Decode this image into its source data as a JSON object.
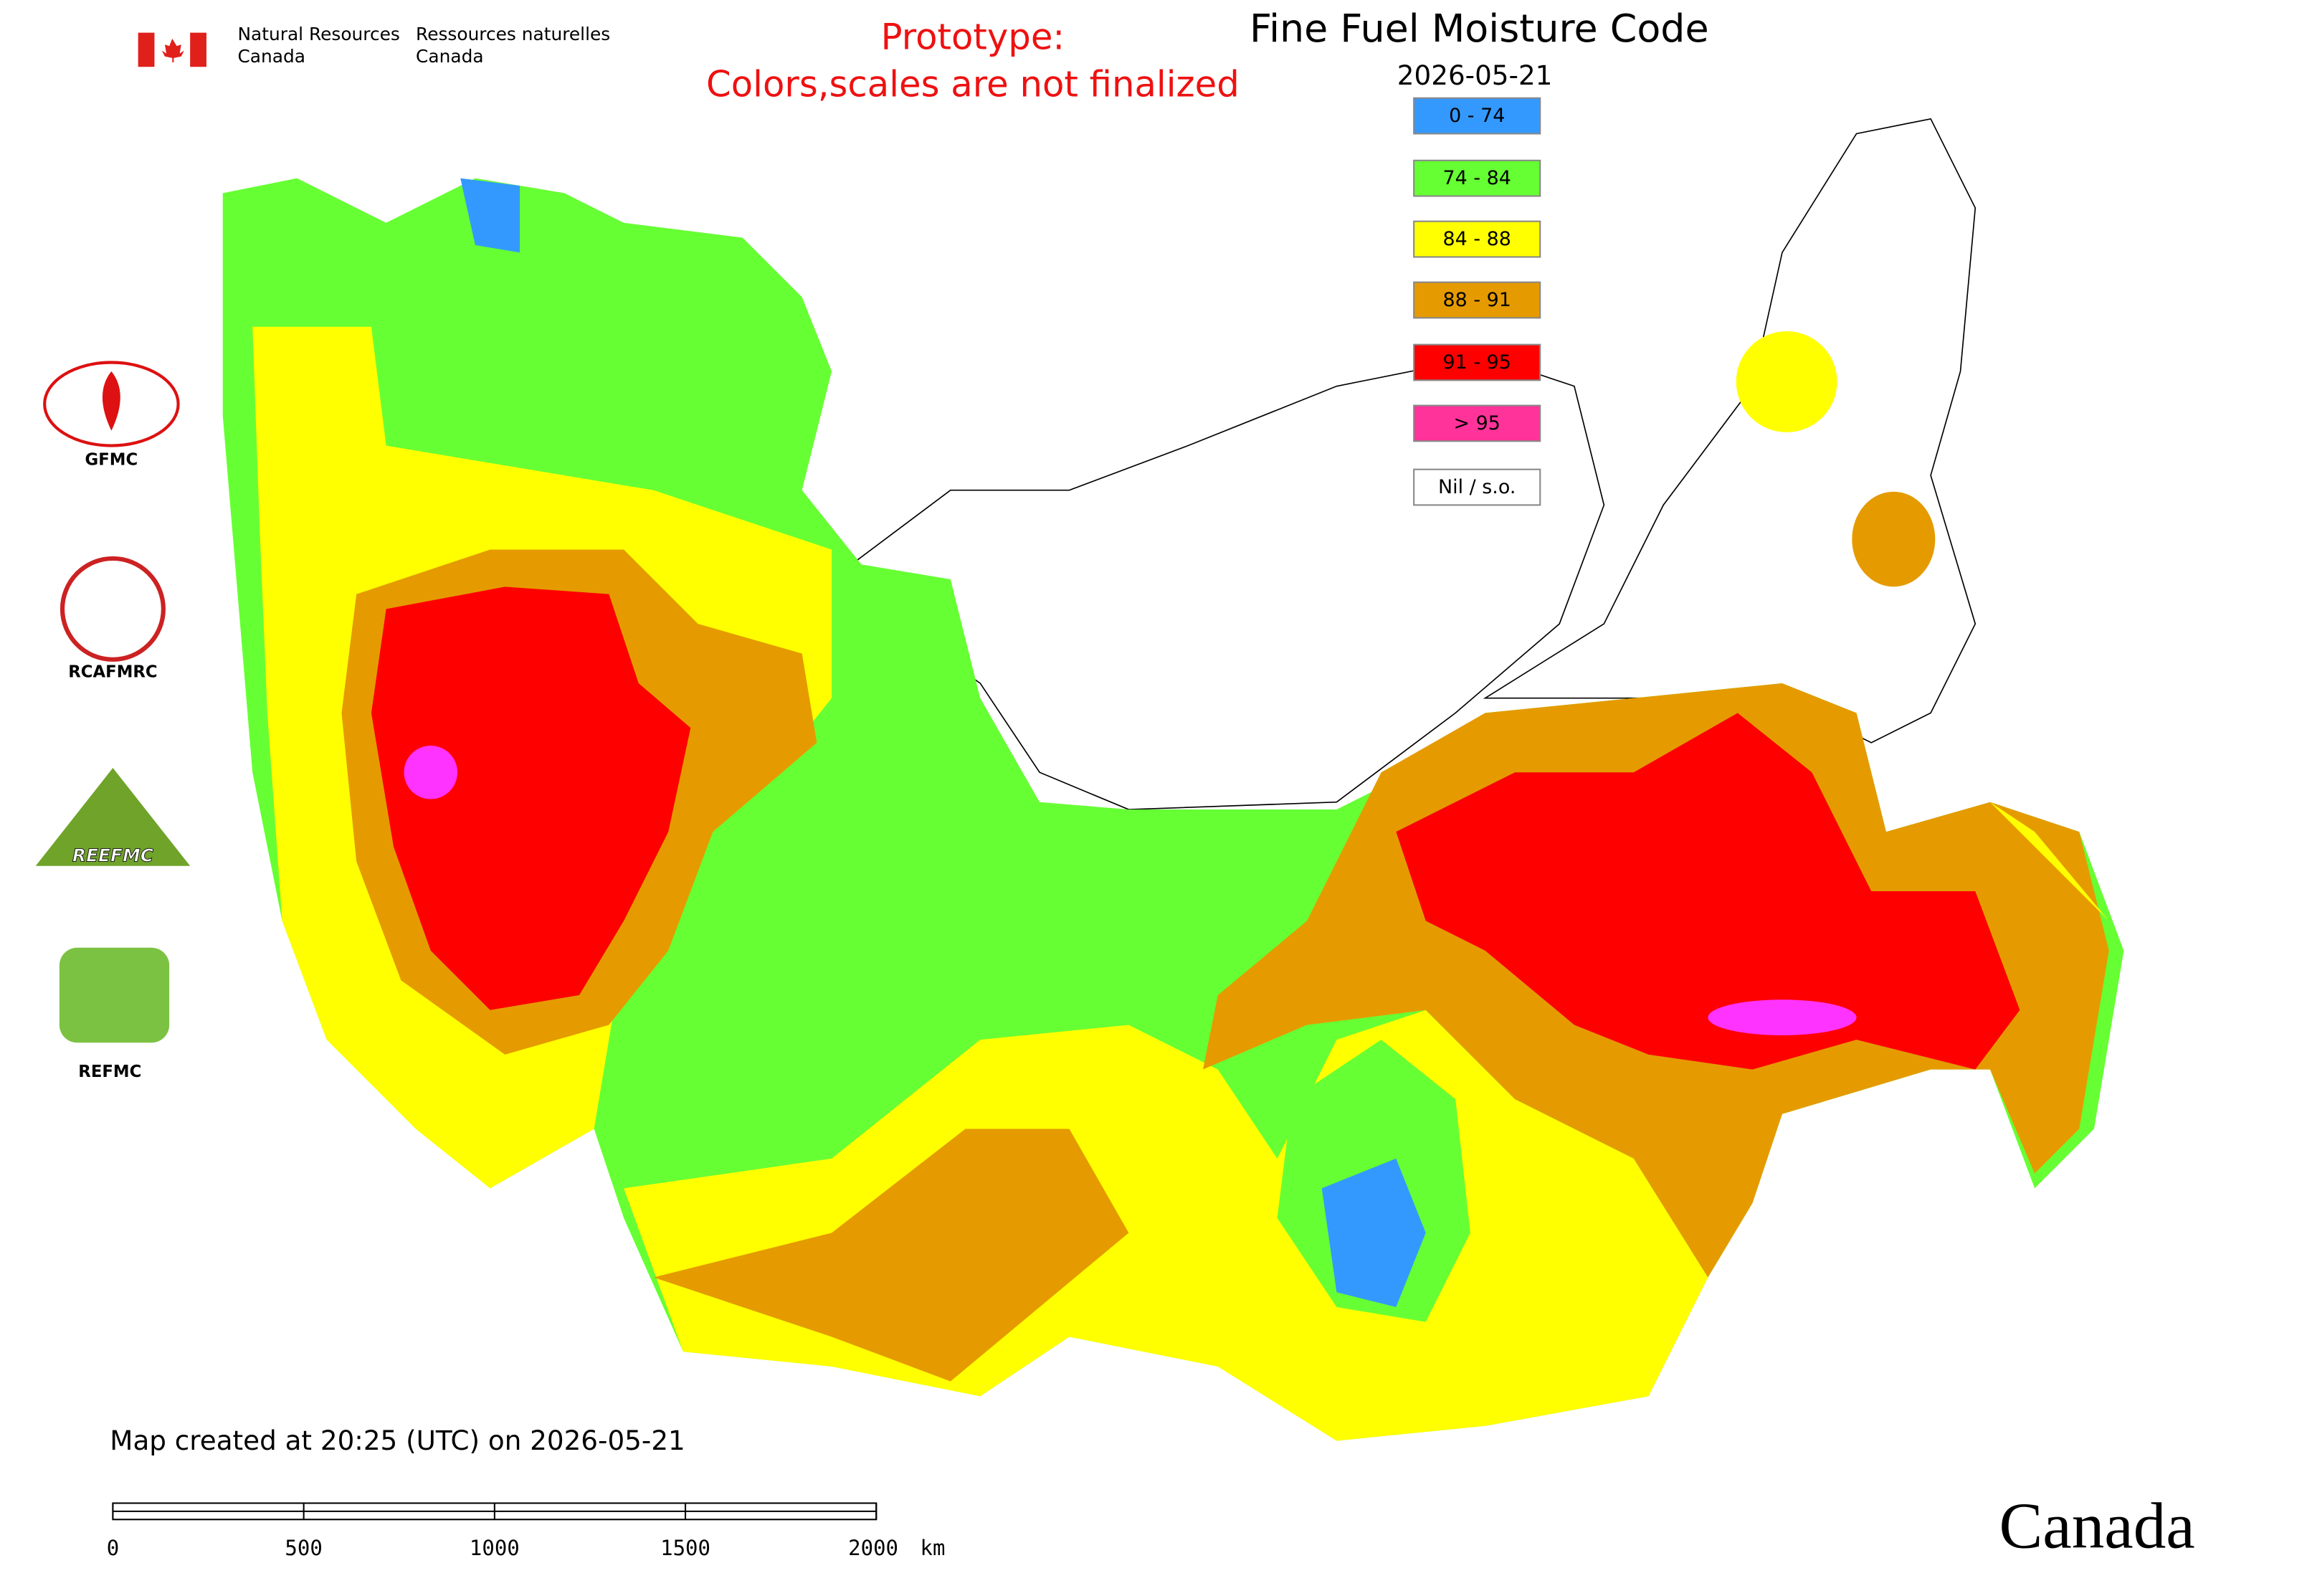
{
  "agency": {
    "english": [
      "Natural Resources",
      "Canada"
    ],
    "french": [
      "Ressources naturelles",
      "Canada"
    ]
  },
  "notice": [
    "Prototype:",
    "Colors,scales are not finalized"
  ],
  "header": {
    "title": "Fine Fuel Moisture Code",
    "date": "2026-05-21"
  },
  "legend": [
    {
      "label": "0 - 74",
      "color": "#3399ff"
    },
    {
      "label": "74 - 84",
      "color": "#66ff33"
    },
    {
      "label": "84 - 88",
      "color": "#ffff00"
    },
    {
      "label": "88 - 91",
      "color": "#e59b00"
    },
    {
      "label": "91 - 95",
      "color": "#ff0000"
    },
    {
      "label": "> 95",
      "color": "#ff3399"
    },
    {
      "label": "Nil / s.o.",
      "color": "#ffffff"
    }
  ],
  "logos": [
    "GFMC",
    "RCAFMRC",
    "REEFMC",
    "REFMC"
  ],
  "footer": {
    "created": "Map created at 20:25 (UTC) on 2026-05-21",
    "wordmark": "Canada"
  },
  "scale_bar": {
    "ticks": [
      0,
      500,
      1000,
      1500,
      2000
    ],
    "unit": "km"
  }
}
